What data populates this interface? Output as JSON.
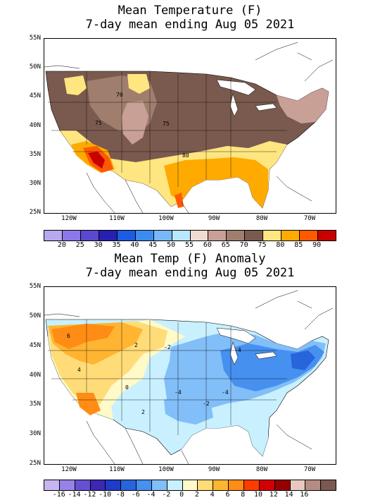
{
  "panel1": {
    "title_line1": "Mean Temperature (F)",
    "title_line2": "7-day mean ending Aug 05 2021",
    "lat_labels": [
      "55N",
      "50N",
      "45N",
      "40N",
      "35N",
      "30N",
      "25N"
    ],
    "lon_labels": [
      "120W",
      "110W",
      "100W",
      "90W",
      "80W",
      "70W"
    ],
    "contour_labels": [
      "70",
      "75",
      "75",
      "80"
    ],
    "colorbar": {
      "colors": [
        "#b8a8f0",
        "#8c78e8",
        "#5a48d0",
        "#2820b0",
        "#1c5ce0",
        "#3c8cf0",
        "#78b8f8",
        "#b8e8ff",
        "#f0dcd0",
        "#c8a096",
        "#a07e6e",
        "#7a5a4e",
        "#ffe680",
        "#ffaa00",
        "#ff5a00",
        "#c80000"
      ],
      "labels": [
        "20",
        "25",
        "30",
        "35",
        "40",
        "45",
        "50",
        "55",
        "60",
        "65",
        "70",
        "75",
        "80",
        "85",
        "90"
      ]
    }
  },
  "panel2": {
    "title_line1": "Mean Temp (F) Anomaly",
    "title_line2": "7-day mean ending Aug 05 2021",
    "lat_labels": [
      "55N",
      "50N",
      "45N",
      "40N",
      "35N",
      "30N",
      "25N"
    ],
    "lon_labels": [
      "120W",
      "110W",
      "100W",
      "90W",
      "80W",
      "70W"
    ],
    "contour_labels": [
      "6",
      "4",
      "2",
      "0",
      "-2",
      "-4",
      "-4",
      "-2",
      "-4",
      "2"
    ],
    "colorbar": {
      "colors": [
        "#c8b4f0",
        "#9682e8",
        "#6450d2",
        "#3c28b4",
        "#1e3cc8",
        "#2864dc",
        "#4690f0",
        "#82bef8",
        "#c8f0ff",
        "#fffac8",
        "#ffdc78",
        "#ffb432",
        "#ff8c14",
        "#ff3c00",
        "#d20000",
        "#960000",
        "#e6c8be",
        "#b48c82",
        "#7a5a50"
      ],
      "labels": [
        "-16",
        "-14",
        "-12",
        "-10",
        "-8",
        "-6",
        "-4",
        "-2",
        "0",
        "2",
        "4",
        "6",
        "8",
        "10",
        "12",
        "14",
        "16"
      ]
    }
  }
}
